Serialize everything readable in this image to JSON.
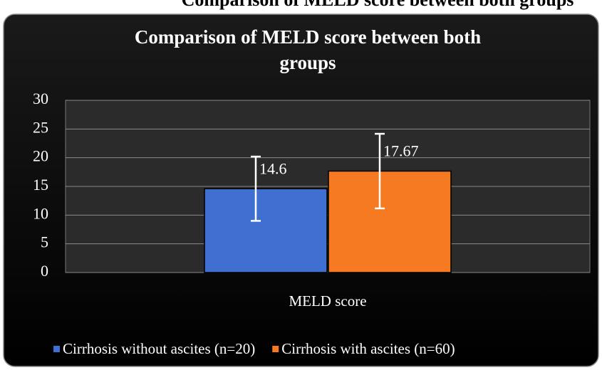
{
  "caption": "Comparison of MELD score between both groups",
  "chart_data": {
    "type": "bar",
    "title": "Comparison of MELD score between both groups",
    "categories": [
      "MELD score"
    ],
    "series": [
      {
        "name": "Cirrhosis without ascites (n=20)",
        "color": "#3f6fd1",
        "values": [
          14.6
        ],
        "errors": [
          5.6
        ]
      },
      {
        "name": "Cirrhosis with ascites (n=60)",
        "color": "#f57a22",
        "values": [
          17.67
        ],
        "errors": [
          6.5
        ]
      }
    ],
    "ylim": [
      0,
      30
    ],
    "yticks": [
      0,
      5,
      10,
      15,
      20,
      25,
      30
    ],
    "grid": true,
    "legend": "bottom"
  }
}
